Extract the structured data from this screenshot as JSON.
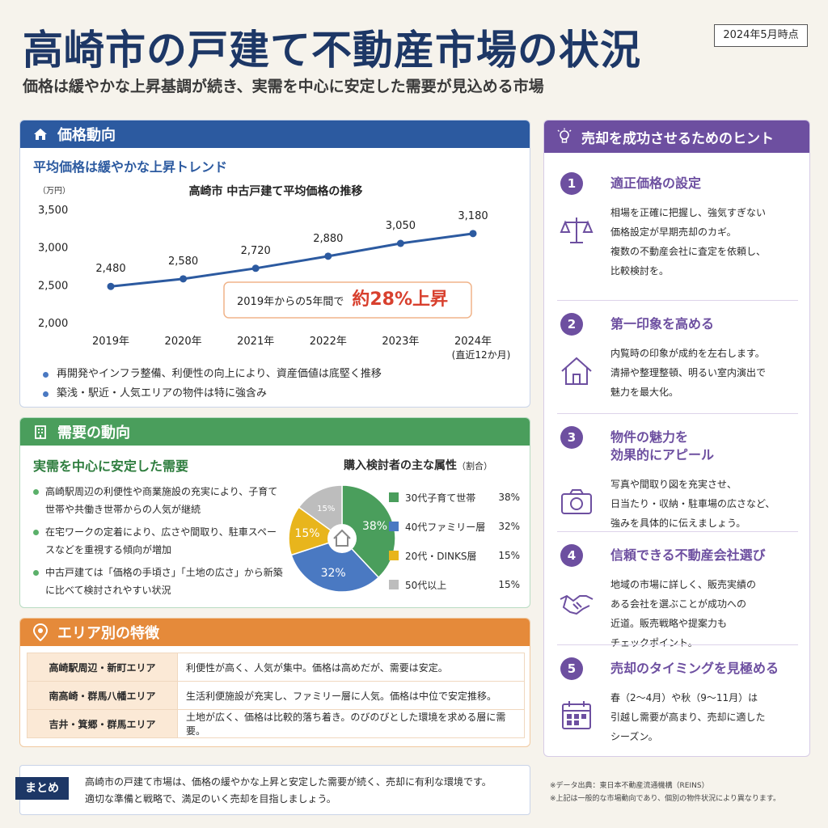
{
  "header": {
    "title": "高崎市の戸建て不動産市場の状況",
    "date_badge": "2024年5月時点",
    "subtitle": "価格は緩やかな上昇基調が続き、実需を中心に安定した需要が見込める市場"
  },
  "price_section": {
    "heading": "価格動向",
    "subheading": "平均価格は緩やかな上昇トレンド",
    "callout_prefix": "2019年からの5年間で",
    "callout_value": "約28%上昇",
    "notes": [
      "再開発やインフラ整備、利便性の向上により、資産価値は底堅く推移",
      "築浅・駅近・人気エリアの物件は特に強含み"
    ]
  },
  "chart_data": [
    {
      "type": "line",
      "title": "高崎市 中古戸建て平均価格の推移",
      "ylabel": "（万円）",
      "xlabel": "",
      "categories": [
        "2019年",
        "2020年",
        "2021年",
        "2022年",
        "2023年",
        "2024年"
      ],
      "category_notes": [
        "",
        "",
        "",
        "",
        "",
        "(直近12か月)"
      ],
      "values": [
        2480,
        2580,
        2720,
        2880,
        3050,
        3180
      ],
      "value_labels": [
        "2,480",
        "2,580",
        "2,720",
        "2,880",
        "3,050",
        "3,180"
      ],
      "ylim": [
        2000,
        3500
      ],
      "yticks": [
        2000,
        2500,
        3000,
        3500
      ],
      "ytick_labels": [
        "2,000",
        "2,500",
        "3,000",
        "3,500"
      ],
      "grid": false,
      "color": "#2c5aa0"
    },
    {
      "type": "pie",
      "title": "購入検討者の主な属性",
      "title_note": "（割合）",
      "labels": [
        "30代子育て世帯",
        "40代ファミリー層",
        "20代・DINKS層",
        "50代以上"
      ],
      "values": [
        38,
        32,
        15,
        15
      ],
      "value_labels": [
        "38%",
        "32%",
        "15%",
        "15%"
      ],
      "colors": [
        "#4a9e5c",
        "#4a79c2",
        "#e8b51c",
        "#bdbdbd"
      ]
    }
  ],
  "demand_section": {
    "heading": "需要の動向",
    "subheading": "実需を中心に安定した需要",
    "bullets": [
      "高崎駅周辺の利便性や商業施設の充実により、子育て世帯や共働き世帯からの人気が継続",
      "在宅ワークの定着により、広さや間取り、駐車スペースなどを重視する傾向が増加",
      "中古戸建ては「価格の手頃さ」「土地の広さ」から新築に比べて検討されやすい状況"
    ]
  },
  "area_section": {
    "heading": "エリア別の特徴",
    "rows": [
      {
        "name": "高崎駅周辺・新町エリア",
        "desc": "利便性が高く、人気が集中。価格は高めだが、需要は安定。"
      },
      {
        "name": "南高崎・群馬八幡エリア",
        "desc": "生活利便施設が充実し、ファミリー層に人気。価格は中位で安定推移。"
      },
      {
        "name": "吉井・箕郷・群馬エリア",
        "desc": "土地が広く、価格は比較的落ち着き。のびのびとした環境を求める層に需要。"
      }
    ]
  },
  "summary": {
    "tag": "まとめ",
    "line1": "高崎市の戸建て市場は、価格の緩やかな上昇と安定した需要が続く、売却に有利な環境です。",
    "line2": "適切な準備と戦略で、満足のいく売却を目指しましょう。"
  },
  "footnotes": {
    "source": "※データ出典：東日本不動産流通機構（REINS）",
    "disclaimer": "※上記は一般的な市場動向であり、個別の物件状況により異なります。"
  },
  "tips_section": {
    "heading": "売却を成功させるためのヒント",
    "tips": [
      {
        "num": "1",
        "title": [
          "適正価格の設定"
        ],
        "icon": "scale-icon",
        "body": [
          "相場を正確に把握し、強気すぎない",
          "価格設定が早期売却のカギ。",
          "複数の不動産会社に査定を依頼し、",
          "比較検討を。"
        ]
      },
      {
        "num": "2",
        "title": [
          "第一印象を高める"
        ],
        "icon": "house-icon",
        "body": [
          "内覧時の印象が成約を左右します。",
          "清掃や整理整頓、明るい室内演出で",
          "魅力を最大化。"
        ]
      },
      {
        "num": "3",
        "title": [
          "物件の魅力を",
          "効果的にアピール"
        ],
        "icon": "camera-icon",
        "body": [
          "写真や間取り図を充実させ、",
          "日当たり・収納・駐車場の広さなど、",
          "強みを具体的に伝えましょう。"
        ]
      },
      {
        "num": "4",
        "title": [
          "信頼できる不動産会社選び"
        ],
        "icon": "handshake-icon",
        "body": [
          "地域の市場に詳しく、販売実績の",
          "ある会社を選ぶことが成功への",
          "近道。販売戦略や提案力も",
          "チェックポイント。"
        ]
      },
      {
        "num": "5",
        "title": [
          "売却のタイミングを見極める"
        ],
        "icon": "calendar-icon",
        "body": [
          "春（2〜4月）や秋（9〜11月）は",
          "引越し需要が高まり、売却に適した",
          "シーズン。"
        ]
      }
    ]
  }
}
